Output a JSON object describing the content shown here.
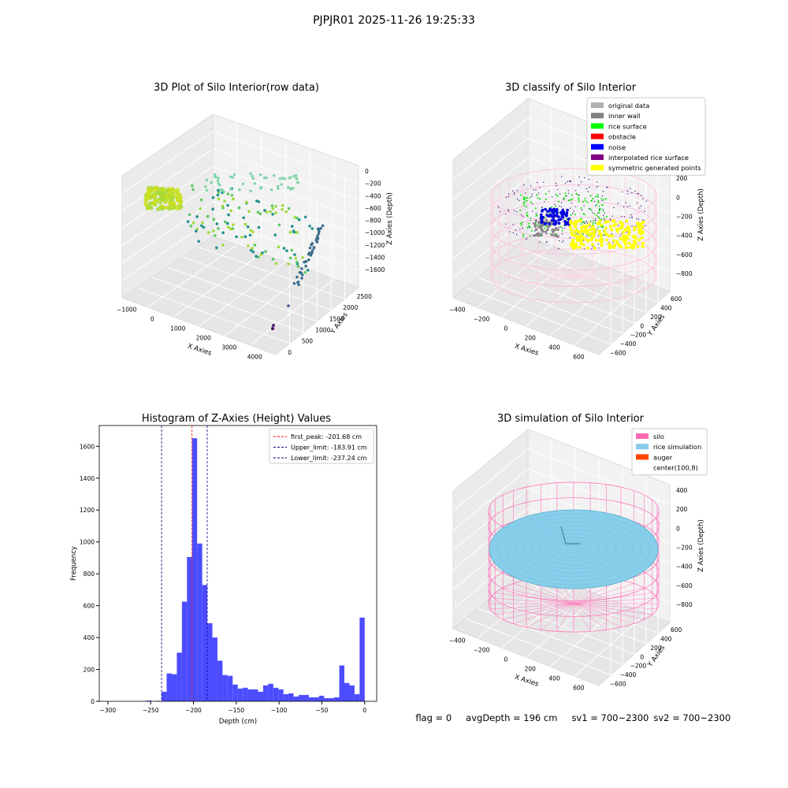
{
  "page_title": "PJPJR01 2025-11-26 19:25:33",
  "footer": {
    "flag": "flag = 0",
    "avg": "avgDepth = 196 cm",
    "sv1": "sv1 = 700~2300",
    "sv2": "sv2 = 700~2300"
  },
  "chart_data": [
    {
      "type": "scatter3d",
      "title": "3D Plot of Silo Interior(row data)",
      "xlabel": "X Axies",
      "ylabel": "Y Axies",
      "zlabel": "Z Axies (Depth)",
      "x_ticks": [
        "−1000",
        "0",
        "1000",
        "2000",
        "3000",
        "4000"
      ],
      "y_ticks": [
        "0",
        "500",
        "1000",
        "1500",
        "2000",
        "2500"
      ],
      "z_ticks": [
        "0",
        "−200",
        "−400",
        "−600",
        "−800",
        "−1000",
        "−1200",
        "−1400",
        "−1600"
      ],
      "xlim": [
        -1000,
        4500
      ],
      "ylim": [
        -300,
        2800
      ],
      "zlim": [
        -1700,
        100
      ],
      "colormap": "viridis"
    },
    {
      "type": "scatter3d",
      "title": "3D classify of Silo Interior",
      "xlabel": "X Axies",
      "ylabel": "Y Axies",
      "zlabel": "Z Axies (Depth)",
      "x_ticks": [
        "−400",
        "−200",
        "0",
        "200",
        "400",
        "600"
      ],
      "y_ticks": [
        "−600",
        "−400",
        "−200",
        "0",
        "200",
        "400",
        "600"
      ],
      "z_ticks": [
        "400",
        "200",
        "0",
        "−200",
        "−400",
        "−600",
        "−800"
      ],
      "legend_position": "top-right",
      "legend": [
        {
          "label": "original data",
          "color": "#b0b0b0"
        },
        {
          "label": "inner wall",
          "color": "#808080"
        },
        {
          "label": "rice surface",
          "color": "#00ff00"
        },
        {
          "label": "obstacle",
          "color": "#ff0000"
        },
        {
          "label": "noise",
          "color": "#0000ff"
        },
        {
          "label": "interpolated rice surface",
          "color": "#800080"
        },
        {
          "label": "symmetric generated points",
          "color": "#ffff00"
        }
      ]
    },
    {
      "type": "bar",
      "title": "Histogram of Z-Axies (Height) Values",
      "xlabel": "Depth (cm)",
      "ylabel": "Frequency",
      "xlim": [
        -310,
        14
      ],
      "ylim": [
        0,
        1730
      ],
      "x_ticks": [
        -300,
        -250,
        -200,
        -150,
        -100,
        -50,
        0
      ],
      "y_ticks": [
        0,
        200,
        400,
        600,
        800,
        1000,
        1200,
        1400,
        1600
      ],
      "bin_width": 5,
      "bins": [
        [
          -255,
          5
        ],
        [
          -250,
          0
        ],
        [
          -245,
          3
        ],
        [
          -240,
          60
        ],
        [
          -235,
          175
        ],
        [
          -230,
          170
        ],
        [
          -225,
          305
        ],
        [
          -220,
          625
        ],
        [
          -215,
          905
        ],
        [
          -210,
          1650
        ],
        [
          -205,
          990
        ],
        [
          -200,
          730
        ],
        [
          -195,
          490
        ],
        [
          -190,
          400
        ],
        [
          -185,
          255
        ],
        [
          -180,
          165
        ],
        [
          -175,
          160
        ],
        [
          -170,
          105
        ],
        [
          -165,
          80
        ],
        [
          -160,
          85
        ],
        [
          -155,
          75
        ],
        [
          -150,
          75
        ],
        [
          -145,
          60
        ],
        [
          -140,
          100
        ],
        [
          -135,
          110
        ],
        [
          -130,
          85
        ],
        [
          -125,
          75
        ],
        [
          -120,
          45
        ],
        [
          -115,
          50
        ],
        [
          -110,
          30
        ],
        [
          -105,
          40
        ],
        [
          -100,
          40
        ],
        [
          -95,
          25
        ],
        [
          -90,
          25
        ],
        [
          -85,
          35
        ],
        [
          -80,
          20
        ],
        [
          -75,
          20
        ],
        [
          -70,
          25
        ],
        [
          -65,
          225
        ],
        [
          -60,
          115
        ],
        [
          -55,
          100
        ],
        [
          -50,
          45
        ],
        [
          -45,
          525
        ]
      ],
      "bar_color": "#4c4cff",
      "lines": [
        {
          "label": "first_peak: -201.68 cm",
          "x": -201.68,
          "color": "#ff0000"
        },
        {
          "label": "Upper_limit: -183.91 cm",
          "x": -183.91,
          "color": "#00008b"
        },
        {
          "label": "Lower_limit: -237.24 cm",
          "x": -237.24,
          "color": "#00008b"
        }
      ],
      "legend_position": "top-right"
    },
    {
      "type": "surface3d",
      "title": "3D simulation of Silo Interior",
      "xlabel": "X Axies",
      "ylabel": "Y Axies",
      "zlabel": "Z Axies (Depth)",
      "x_ticks": [
        "−400",
        "−200",
        "0",
        "200",
        "400",
        "600"
      ],
      "y_ticks": [
        "−600",
        "−400",
        "−200",
        "0",
        "200",
        "400",
        "600"
      ],
      "z_ticks": [
        "400",
        "200",
        "0",
        "−200",
        "−400",
        "−600",
        "−800"
      ],
      "legend_position": "top-right",
      "legend": [
        {
          "label": "silo",
          "color": "#ff69b4"
        },
        {
          "label": "rice simulation",
          "color": "#87ceeb"
        },
        {
          "label": "auger",
          "color": "#ff4500"
        },
        {
          "label": "center(100,8)",
          "color": "#ffffff"
        }
      ]
    }
  ]
}
